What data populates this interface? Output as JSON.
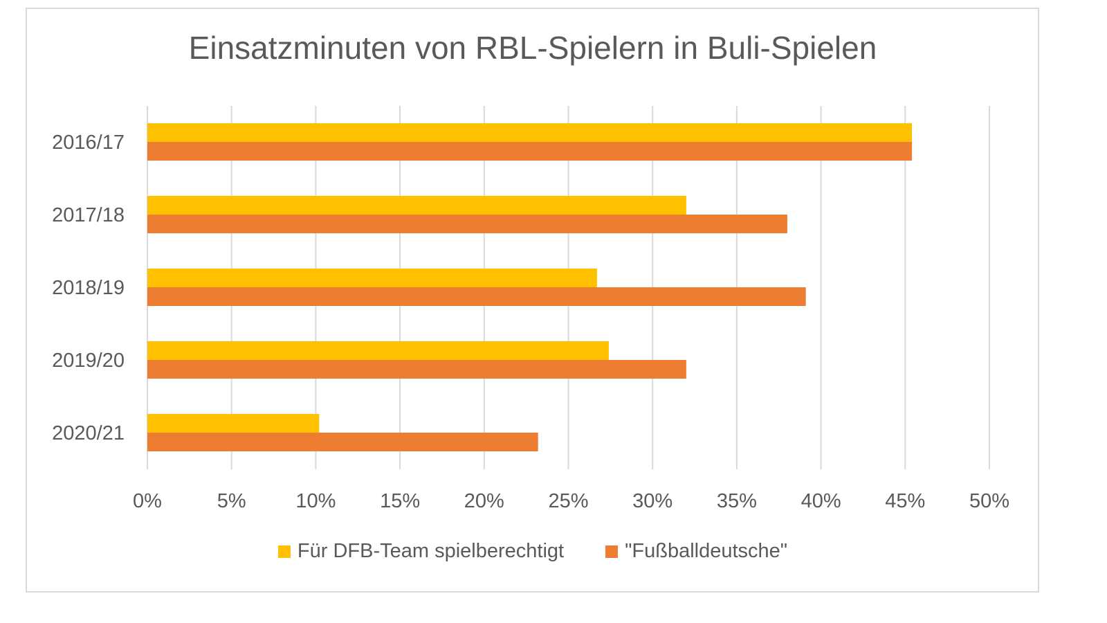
{
  "chart_data": {
    "type": "bar",
    "orientation": "horizontal",
    "title": "Einsatzminuten von RBL-Spielern in Buli-Spielen",
    "categories": [
      "2016/17",
      "2017/18",
      "2018/19",
      "2019/20",
      "2020/21"
    ],
    "series": [
      {
        "name": "Für DFB-Team spielberechtigt",
        "color": "#FFC000",
        "values": [
          45.4,
          32.0,
          26.7,
          27.4,
          10.2
        ]
      },
      {
        "name": "\"Fußballdeutsche\"",
        "color": "#ED7D31",
        "values": [
          45.4,
          38.0,
          39.1,
          32.0,
          23.2
        ]
      }
    ],
    "xlim": [
      0,
      50
    ],
    "x_ticks": [
      "0%",
      "5%",
      "10%",
      "15%",
      "20%",
      "25%",
      "30%",
      "35%",
      "40%",
      "45%",
      "50%"
    ],
    "grid": "vertical",
    "legend_position": "bottom"
  }
}
